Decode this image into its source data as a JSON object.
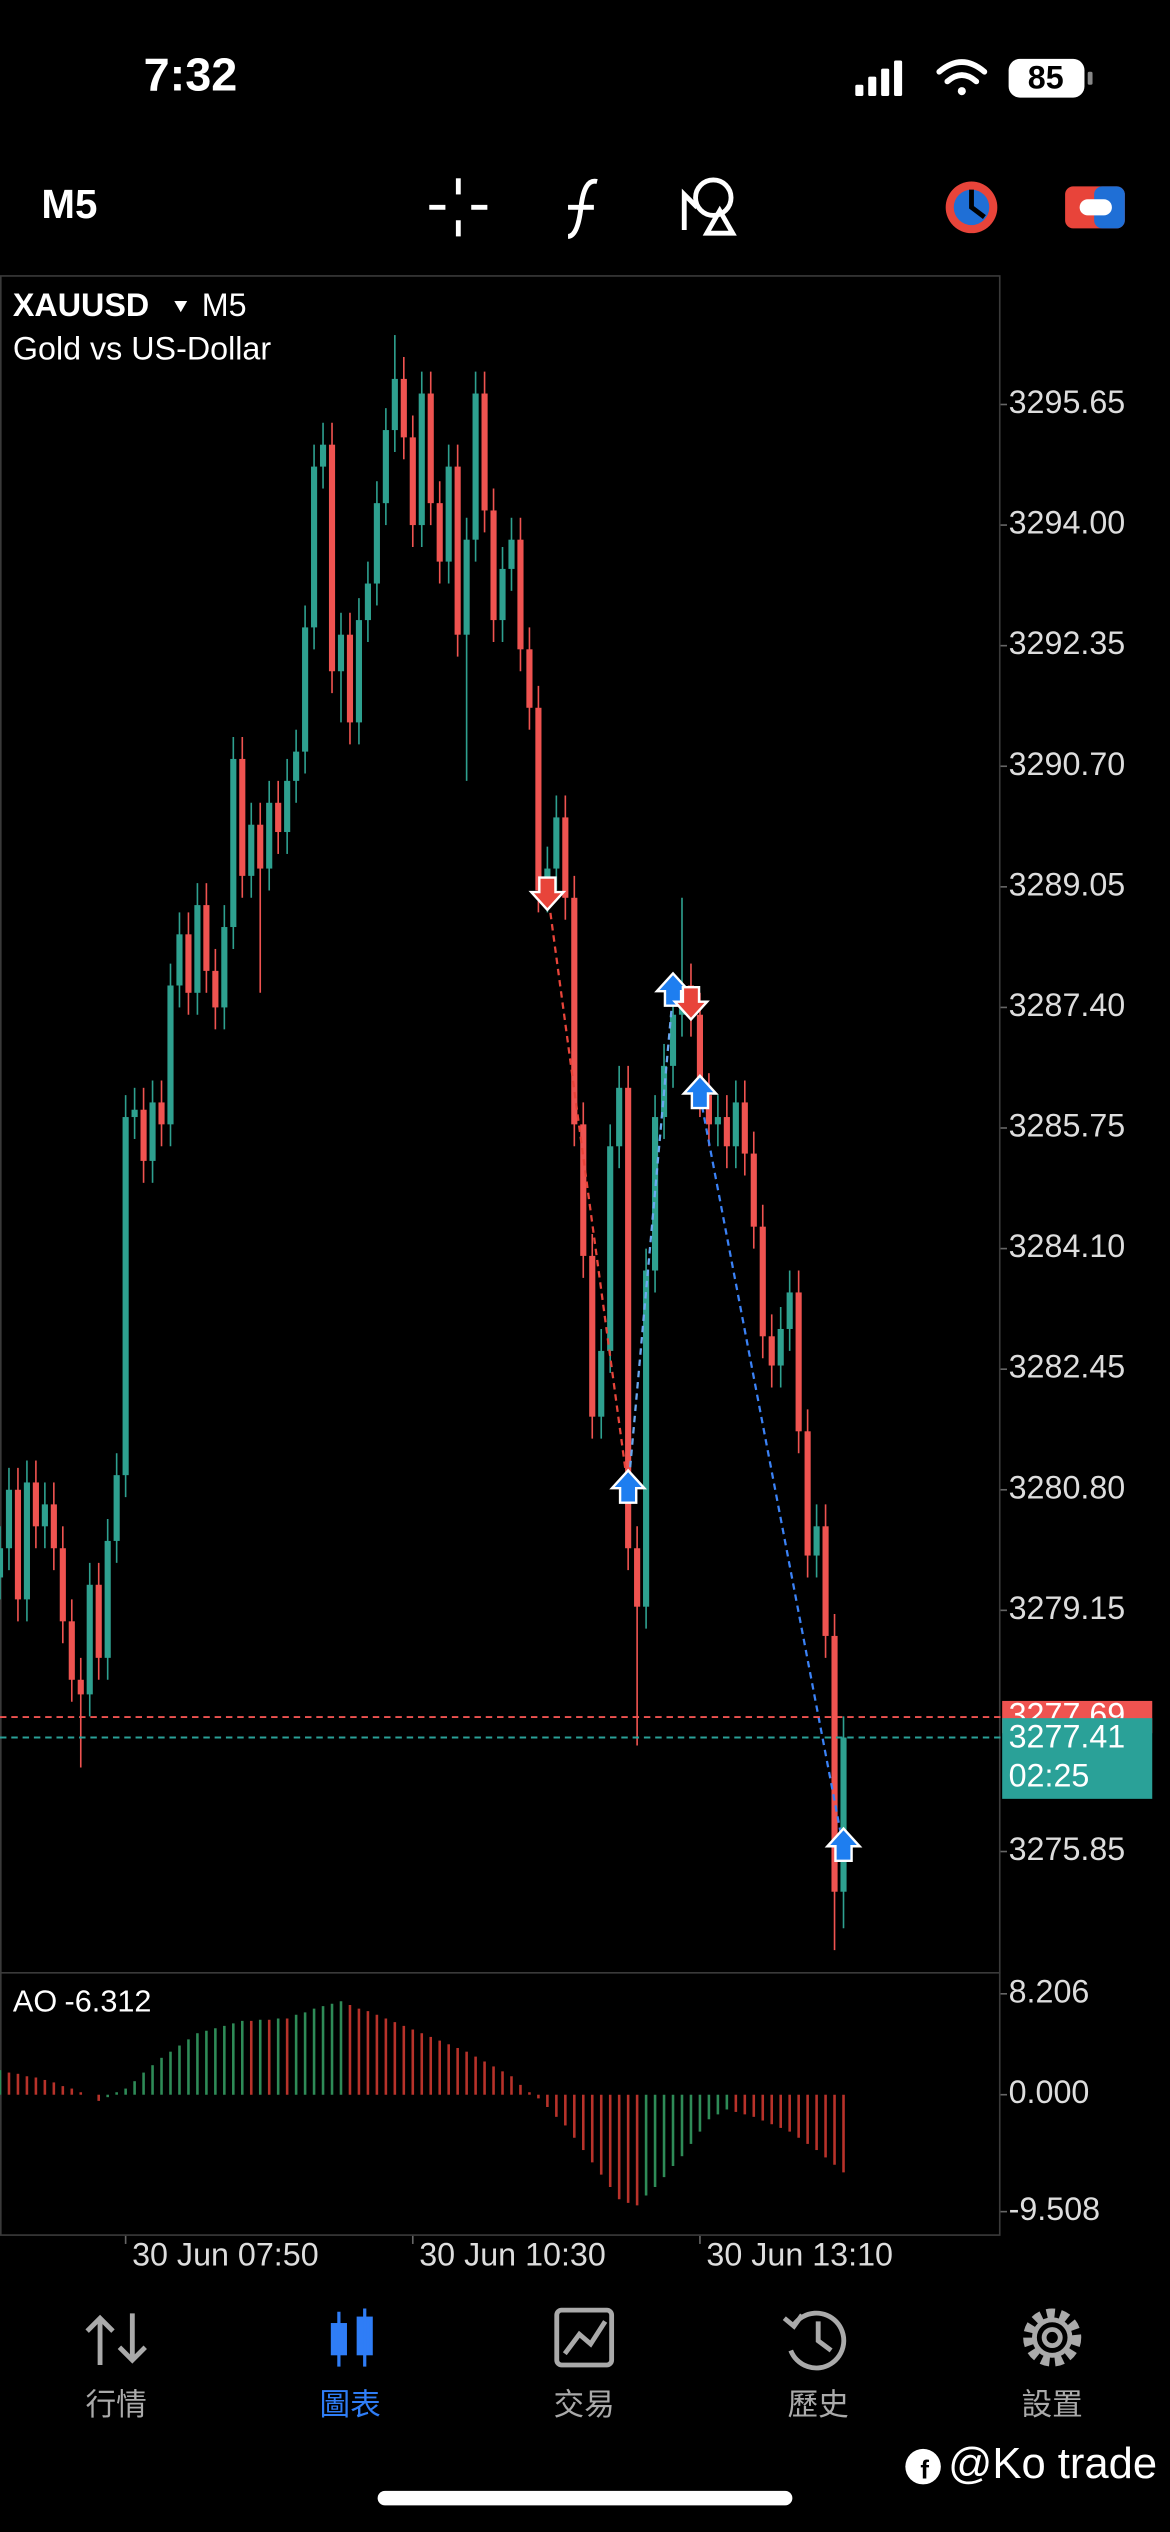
{
  "status_bar": {
    "time": "7:32",
    "battery": "85"
  },
  "toolbar": {
    "timeframe": "M5"
  },
  "chart_data": {
    "type": "candlestick",
    "symbol": "XAUUSD",
    "timeframe": "M5",
    "description": "Gold vs US-Dollar",
    "up_color": "#2ea08f",
    "down_color": "#ef5350",
    "xlim": [
      0,
      111.5
    ],
    "xticks": [
      {
        "value": 14,
        "label": "30 Jun 07:50"
      },
      {
        "value": 46,
        "label": "30 Jun 10:30"
      },
      {
        "value": 78,
        "label": "30 Jun 13:10"
      }
    ],
    "ylim": [
      3274.19,
      3297.42
    ],
    "yticks": [
      3295.65,
      {
        "value": 3294,
        "label": "3294.00"
      },
      3292.35,
      {
        "value": 3290.7,
        "label": "3290.70"
      },
      3289.05,
      {
        "value": 3287.4,
        "label": "3287.40"
      },
      3285.75,
      {
        "value": 3284.1,
        "label": "3284.10"
      },
      3282.45,
      {
        "value": 3280.8,
        "label": "3280.80"
      },
      3279.15,
      3275.85
    ],
    "open": [
      3279.6,
      3280.0,
      3280.8,
      3279.3,
      3280.9,
      3280.3,
      3280.6,
      3280.0,
      3279.0,
      3278.2,
      3278.0,
      3279.5,
      3278.5,
      3280.1,
      3281.0,
      3285.9,
      3286.0,
      3285.3,
      3286.1,
      3285.8,
      3287.7,
      3288.4,
      3287.6,
      3288.8,
      3287.9,
      3287.4,
      3288.5,
      3290.8,
      3289.2,
      3289.9,
      3289.3,
      3290.2,
      3289.8,
      3290.5,
      3290.9,
      3292.6,
      3294.8,
      3295.1,
      3292.0,
      3292.5,
      3291.3,
      3292.7,
      3293.2,
      3294.3,
      3295.3,
      3296.0,
      3295.2,
      3294.0,
      3295.8,
      3294.3,
      3293.5,
      3294.8,
      3292.5,
      3293.8,
      3295.8,
      3294.2,
      3292.7,
      3293.4,
      3293.8,
      3292.3,
      3291.5,
      3289.0,
      3289.3,
      3290.0,
      3288.9,
      3285.8,
      3284.0,
      3281.8,
      3282.7,
      3285.5,
      3286.3,
      3280.0,
      3279.2,
      3283.8,
      3285.9,
      3286.6,
      3287.3,
      3287.7,
      3287.3,
      3286.2,
      3285.8,
      3285.9,
      3285.5,
      3286.1,
      3285.4,
      3284.4,
      3282.9,
      3282.5,
      3283.0,
      3283.5,
      3281.6,
      3279.9,
      3280.3,
      3278.8,
      3275.3
    ],
    "high": [
      3280.3,
      3281.1,
      3281.1,
      3281.2,
      3281.2,
      3280.9,
      3280.9,
      3280.3,
      3279.3,
      3278.5,
      3279.8,
      3279.8,
      3280.4,
      3281.3,
      3286.2,
      3286.3,
      3286.3,
      3286.4,
      3286.4,
      3288.0,
      3288.7,
      3288.7,
      3289.1,
      3289.1,
      3288.2,
      3288.8,
      3291.1,
      3291.1,
      3290.2,
      3290.2,
      3290.5,
      3290.5,
      3290.8,
      3291.2,
      3292.9,
      3295.1,
      3295.4,
      3295.4,
      3292.8,
      3292.8,
      3293.0,
      3293.5,
      3294.6,
      3295.6,
      3296.6,
      3296.3,
      3295.5,
      3296.1,
      3296.1,
      3294.6,
      3295.1,
      3295.1,
      3294.1,
      3296.1,
      3296.1,
      3294.5,
      3293.7,
      3294.1,
      3294.1,
      3292.6,
      3291.8,
      3289.6,
      3290.3,
      3290.3,
      3289.2,
      3286.1,
      3284.3,
      3283.0,
      3285.8,
      3286.6,
      3286.6,
      3280.3,
      3284.1,
      3286.2,
      3286.9,
      3287.6,
      3288.9,
      3288.0,
      3287.6,
      3286.5,
      3286.2,
      3286.2,
      3286.4,
      3286.4,
      3285.7,
      3284.7,
      3283.2,
      3283.3,
      3283.8,
      3283.8,
      3281.9,
      3280.6,
      3280.6,
      3279.1,
      3277.7
    ],
    "low": [
      3279.3,
      3279.7,
      3279.0,
      3279.0,
      3280.0,
      3280.0,
      3279.7,
      3278.7,
      3277.9,
      3277.0,
      3277.7,
      3278.2,
      3278.2,
      3279.8,
      3280.7,
      3285.6,
      3285.0,
      3285.0,
      3285.5,
      3285.5,
      3287.4,
      3287.3,
      3287.3,
      3287.6,
      3287.1,
      3287.1,
      3288.2,
      3288.9,
      3288.9,
      3287.6,
      3289.0,
      3289.5,
      3289.5,
      3290.2,
      3290.6,
      3292.3,
      3294.5,
      3291.7,
      3291.3,
      3291.0,
      3291.0,
      3292.4,
      3292.9,
      3294.0,
      3295.0,
      3294.9,
      3293.7,
      3293.7,
      3294.0,
      3293.2,
      3293.2,
      3292.2,
      3290.5,
      3293.5,
      3293.9,
      3292.4,
      3292.4,
      3293.1,
      3292.0,
      3291.2,
      3288.7,
      3288.7,
      3289.0,
      3288.6,
      3285.5,
      3283.7,
      3281.5,
      3281.5,
      3282.4,
      3285.2,
      3279.7,
      3277.3,
      3278.9,
      3283.5,
      3285.6,
      3286.3,
      3287.0,
      3287.0,
      3285.9,
      3285.5,
      3285.5,
      3285.2,
      3285.2,
      3285.1,
      3284.1,
      3282.6,
      3282.2,
      3282.2,
      3282.7,
      3281.3,
      3279.6,
      3279.6,
      3278.5,
      3274.5,
      3274.8
    ],
    "close": [
      3280.0,
      3280.8,
      3279.3,
      3280.9,
      3280.3,
      3280.6,
      3280.0,
      3279.0,
      3278.2,
      3278.0,
      3279.5,
      3278.5,
      3280.1,
      3281.0,
      3285.9,
      3286.0,
      3285.3,
      3286.1,
      3285.8,
      3287.7,
      3288.4,
      3287.6,
      3288.8,
      3287.9,
      3287.4,
      3288.5,
      3290.8,
      3289.2,
      3289.9,
      3289.3,
      3290.2,
      3289.8,
      3290.5,
      3290.9,
      3292.6,
      3294.8,
      3295.1,
      3292.0,
      3292.5,
      3291.3,
      3292.7,
      3293.2,
      3294.3,
      3295.3,
      3296.0,
      3295.2,
      3294.0,
      3295.8,
      3294.3,
      3293.5,
      3294.8,
      3292.5,
      3293.8,
      3295.8,
      3294.2,
      3292.7,
      3293.4,
      3293.8,
      3292.3,
      3291.5,
      3289.0,
      3289.3,
      3290.0,
      3288.9,
      3285.8,
      3284.0,
      3281.8,
      3282.7,
      3285.5,
      3286.3,
      3280.0,
      3279.2,
      3283.8,
      3285.9,
      3286.6,
      3287.3,
      3287.7,
      3287.3,
      3286.2,
      3285.8,
      3285.9,
      3285.5,
      3286.1,
      3285.4,
      3284.4,
      3282.9,
      3282.5,
      3283.0,
      3283.5,
      3281.6,
      3279.9,
      3280.3,
      3278.8,
      3275.3,
      3277.41
    ],
    "ask": {
      "value": 3277.69,
      "label": "3277.69",
      "color": "#ef5350"
    },
    "bid": {
      "value": 3277.41,
      "label": "3277.41",
      "color": "#2aa198"
    },
    "timer": "02:25",
    "trades": [
      {
        "side": "sell",
        "index": 61,
        "price": 3289.0
      },
      {
        "side": "buy",
        "index": 70,
        "price": 3280.8
      },
      {
        "side": "buy",
        "index": 75,
        "price": 3287.6
      },
      {
        "side": "sell",
        "index": 77,
        "price": 3287.5
      },
      {
        "side": "buy",
        "index": 78,
        "price": 3286.2
      },
      {
        "side": "buy",
        "index": 94,
        "price": 3275.9
      }
    ],
    "buy_color": "#1e7ef0",
    "sell_color": "#e8443a",
    "connectors": [
      {
        "from": 0,
        "to": 1,
        "color": "#e8443a"
      },
      {
        "from": 1,
        "to": 2,
        "color": "#6aa8f0"
      },
      {
        "from": 4,
        "to": 5,
        "color": "#3b82f6"
      }
    ],
    "indicator": {
      "type": "bar",
      "name": "AO",
      "up_color": "#2e8b57",
      "down_color": "#b8322a",
      "ylim": [
        -11.48,
        9.91
      ],
      "yticks": [
        8.206,
        {
          "value": 0,
          "label": "0.000"
        },
        -9.508
      ],
      "values": [
        2.0,
        1.8,
        1.7,
        1.5,
        1.4,
        1.2,
        1.0,
        0.7,
        0.5,
        0.2,
        0.0,
        -0.5,
        -0.2,
        0.2,
        0.5,
        1.1,
        1.8,
        2.4,
        3.0,
        3.5,
        4.0,
        4.5,
        5.0,
        5.2,
        5.4,
        5.6,
        5.8,
        6.0,
        6.0,
        6.1,
        6.1,
        6.2,
        6.2,
        6.5,
        6.7,
        7.0,
        7.2,
        7.4,
        7.6,
        7.3,
        7.0,
        6.8,
        6.5,
        6.2,
        5.9,
        5.6,
        5.3,
        5.0,
        4.7,
        4.4,
        4.1,
        3.8,
        3.5,
        3.1,
        2.7,
        2.3,
        1.9,
        1.5,
        0.8,
        0.2,
        -0.3,
        -1.0,
        -1.8,
        -2.5,
        -3.5,
        -4.5,
        -5.5,
        -6.5,
        -7.5,
        -8.5,
        -8.8,
        -9.0,
        -8.2,
        -7.5,
        -6.7,
        -5.8,
        -5.0,
        -4.0,
        -3.0,
        -2.0,
        -1.6,
        -1.2,
        -1.4,
        -1.6,
        -1.8,
        -2.1,
        -2.4,
        -2.7,
        -3.0,
        -3.5,
        -4.0,
        -4.5,
        -5.1,
        -5.7,
        -6.312
      ]
    }
  },
  "tab_bar": {
    "tabs": [
      "行情",
      "圖表",
      "交易",
      "歷史",
      "設置"
    ],
    "active": 1
  },
  "watermark": "@Ko trade"
}
